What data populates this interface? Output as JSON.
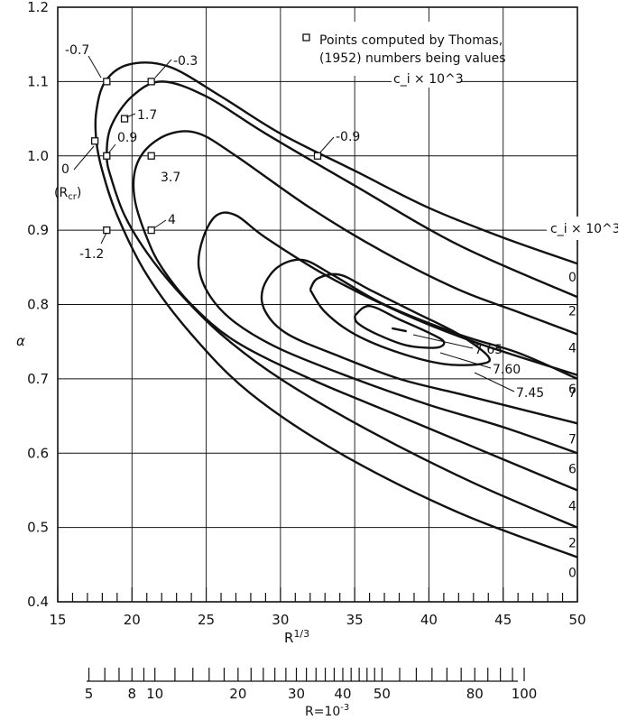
{
  "chart_data": {
    "type": "line",
    "xlabel": "R^{1/3}",
    "ylabel": "α",
    "xlim": [
      15,
      50
    ],
    "ylim": [
      0.4,
      1.2
    ],
    "xticks": [
      "15",
      "20",
      "25",
      "30",
      "35",
      "40",
      "45",
      "50"
    ],
    "yticks": [
      "0.4",
      "0.5",
      "0.6",
      "0.7",
      "0.8",
      "0.9",
      "1.0",
      "1.1",
      "1.2"
    ],
    "secondary_axis": {
      "label": "R=10^{-3}",
      "ticks": [
        "5",
        "8",
        "10",
        "20",
        "30",
        "40",
        "50",
        "80",
        "100"
      ]
    },
    "legend": {
      "line1": "Points computed by Thomas,",
      "line2": "(1952) numbers being values",
      "line3": "c_i × 10^3",
      "placement": "top-right"
    },
    "series_header": "c_i × 10^3",
    "series": [
      {
        "name": "0",
        "points": [
          [
            50,
            0.46
          ],
          [
            42,
            0.52
          ],
          [
            34,
            0.6
          ],
          [
            28,
            0.68
          ],
          [
            24,
            0.76
          ],
          [
            21,
            0.84
          ],
          [
            19,
            0.92
          ],
          [
            18,
            0.98
          ],
          [
            17.6,
            1.02
          ],
          [
            17.6,
            1.06
          ],
          [
            18.2,
            1.1
          ],
          [
            19.8,
            1.123
          ],
          [
            22.5,
            1.12
          ],
          [
            26,
            1.08
          ],
          [
            30,
            1.03
          ],
          [
            35,
            0.98
          ],
          [
            40,
            0.93
          ],
          [
            45,
            0.89
          ],
          [
            50,
            0.855
          ]
        ]
      },
      {
        "name": "2",
        "points": [
          [
            50,
            0.5
          ],
          [
            43,
            0.56
          ],
          [
            36,
            0.63
          ],
          [
            30,
            0.7
          ],
          [
            26,
            0.76
          ],
          [
            23,
            0.82
          ],
          [
            21,
            0.87
          ],
          [
            19.5,
            0.92
          ],
          [
            18.6,
            0.97
          ],
          [
            18.3,
            1.0
          ],
          [
            18.6,
            1.04
          ],
          [
            20,
            1.08
          ],
          [
            22,
            1.1
          ],
          [
            25,
            1.08
          ],
          [
            29,
            1.03
          ],
          [
            35,
            0.96
          ],
          [
            42,
            0.88
          ],
          [
            50,
            0.81
          ]
        ]
      },
      {
        "name": "4",
        "points": [
          [
            50,
            0.55
          ],
          [
            44,
            0.6
          ],
          [
            38,
            0.65
          ],
          [
            32,
            0.7
          ],
          [
            27,
            0.75
          ],
          [
            24,
            0.8
          ],
          [
            22,
            0.85
          ],
          [
            21,
            0.89
          ],
          [
            20.2,
            0.94
          ],
          [
            20.2,
            0.98
          ],
          [
            21,
            1.01
          ],
          [
            22.6,
            1.03
          ],
          [
            24.5,
            1.03
          ],
          [
            27,
            1.0
          ],
          [
            32,
            0.93
          ],
          [
            37,
            0.87
          ],
          [
            42,
            0.82
          ],
          [
            46,
            0.79
          ],
          [
            50,
            0.76
          ]
        ]
      },
      {
        "name": "6",
        "points": [
          [
            50,
            0.6
          ],
          [
            45,
            0.635
          ],
          [
            40,
            0.665
          ],
          [
            35,
            0.7
          ],
          [
            30,
            0.74
          ],
          [
            27,
            0.775
          ],
          [
            25.3,
            0.81
          ],
          [
            24.5,
            0.85
          ],
          [
            24.8,
            0.89
          ],
          [
            25.7,
            0.92
          ],
          [
            27,
            0.92
          ],
          [
            29,
            0.89
          ],
          [
            33,
            0.84
          ],
          [
            38,
            0.79
          ],
          [
            43,
            0.75
          ],
          [
            50,
            0.705
          ]
        ]
      },
      {
        "name": "7",
        "points": [
          [
            50,
            0.64
          ],
          [
            46,
            0.66
          ],
          [
            42,
            0.68
          ],
          [
            38,
            0.7
          ],
          [
            34,
            0.73
          ],
          [
            30.5,
            0.76
          ],
          [
            29,
            0.79
          ],
          [
            28.8,
            0.82
          ],
          [
            29.8,
            0.85
          ],
          [
            31.5,
            0.86
          ],
          [
            33.5,
            0.84
          ],
          [
            37,
            0.8
          ],
          [
            42,
            0.76
          ],
          [
            46,
            0.735
          ],
          [
            50,
            0.7
          ]
        ]
      },
      {
        "name": "7.45",
        "points": [
          [
            32,
            0.82
          ],
          [
            32.5,
            0.835
          ],
          [
            34,
            0.84
          ],
          [
            36,
            0.82
          ],
          [
            39,
            0.79
          ],
          [
            42,
            0.76
          ],
          [
            44,
            0.73
          ],
          [
            43.5,
            0.72
          ],
          [
            41,
            0.72
          ],
          [
            38,
            0.735
          ],
          [
            35,
            0.76
          ],
          [
            33,
            0.79
          ],
          [
            32,
            0.82
          ]
        ]
      },
      {
        "name": "7.60",
        "points": [
          [
            35,
            0.785
          ],
          [
            36,
            0.798
          ],
          [
            38,
            0.78
          ],
          [
            40,
            0.762
          ],
          [
            41,
            0.75
          ],
          [
            40.5,
            0.742
          ],
          [
            38.5,
            0.745
          ],
          [
            36.5,
            0.76
          ],
          [
            35.2,
            0.775
          ],
          [
            35,
            0.785
          ]
        ]
      },
      {
        "name": "7.65",
        "points": [
          [
            37.5,
            0.768
          ],
          [
            38.5,
            0.764
          ]
        ]
      }
    ],
    "computed_points": [
      {
        "label": "-0.7",
        "x": 18.3,
        "y": 1.1
      },
      {
        "label": "-0.3",
        "x": 21.3,
        "y": 1.1
      },
      {
        "label": "1.7",
        "x": 19.5,
        "y": 1.05
      },
      {
        "label": "0 (R_cr)",
        "x": 17.5,
        "y": 1.02
      },
      {
        "label": "0.9",
        "x": 18.3,
        "y": 1.0
      },
      {
        "label": "3.7",
        "x": 21.3,
        "y": 1.0
      },
      {
        "label": "-0.9",
        "x": 32.5,
        "y": 1.0
      },
      {
        "label": "-1.2",
        "x": 18.3,
        "y": 0.9
      },
      {
        "label": "4",
        "x": 21.3,
        "y": 0.9
      }
    ],
    "annotations": {
      "neg07": "-0.7",
      "neg03": "-0.3",
      "p17": "1.7",
      "zero": "0",
      "rcr": "(R",
      "rcr_sub": "cr",
      "rcr_close": ")",
      "p09": "0.9",
      "p37": "3.7",
      "neg09": "-0.9",
      "neg12": "-1.2",
      "p4": "4",
      "l765": "7.65",
      "l760": "7.60",
      "l745": "7.45"
    },
    "grid": true
  }
}
